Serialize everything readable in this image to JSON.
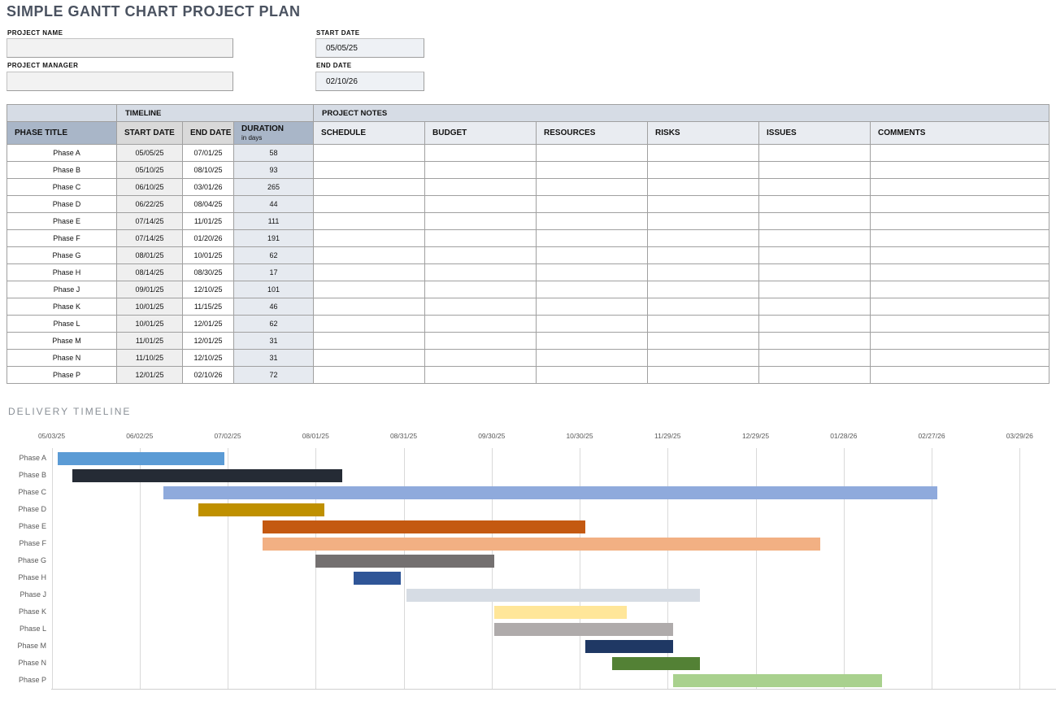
{
  "window": {
    "title": "SIMPLE GANTT CHART PROJECT PLAN"
  },
  "form": {
    "project_name_label": "PROJECT NAME",
    "project_name_value": "",
    "project_manager_label": "PROJECT MANAGER",
    "project_manager_value": "",
    "start_date_label": "START DATE",
    "start_date_value": "05/05/25",
    "end_date_label": "END DATE",
    "end_date_value": "02/10/26"
  },
  "table": {
    "group_timeline": "TIMELINE",
    "group_notes": "PROJECT NOTES",
    "col_phase": "PHASE TITLE",
    "col_start": "START DATE",
    "col_end": "END DATE",
    "col_duration": "DURATION",
    "col_duration_sub": "in days",
    "note_columns": [
      "SCHEDULE",
      "BUDGET",
      "RESOURCES",
      "RISKS",
      "ISSUES",
      "COMMENTS"
    ]
  },
  "gantt": {
    "section_title": "DELIVERY TIMELINE",
    "axis_labels": [
      "05/03/25",
      "06/02/25",
      "07/02/25",
      "08/01/25",
      "08/31/25",
      "09/30/25",
      "10/30/25",
      "11/29/25",
      "12/29/25",
      "01/28/26",
      "02/27/26",
      "03/29/26"
    ],
    "axis_start_date": "05/03/25",
    "axis_interval_days": 30
  },
  "chart_data": {
    "type": "gantt",
    "title": "DELIVERY TIMELINE",
    "x_tick_labels": [
      "05/03/25",
      "06/02/25",
      "07/02/25",
      "08/01/25",
      "08/31/25",
      "09/30/25",
      "10/30/25",
      "11/29/25",
      "12/29/25",
      "01/28/26",
      "02/27/26",
      "03/29/26"
    ],
    "tasks": [
      {
        "name": "Phase A",
        "start": "05/05/25",
        "end": "07/01/25",
        "duration": "58",
        "color": "#5b9bd5"
      },
      {
        "name": "Phase B",
        "start": "05/10/25",
        "end": "08/10/25",
        "duration": "93",
        "color": "#252b35"
      },
      {
        "name": "Phase C",
        "start": "06/10/25",
        "end": "03/01/26",
        "duration": "265",
        "color": "#8faadc"
      },
      {
        "name": "Phase D",
        "start": "06/22/25",
        "end": "08/04/25",
        "duration": "44",
        "color": "#bf9000"
      },
      {
        "name": "Phase E",
        "start": "07/14/25",
        "end": "11/01/25",
        "duration": "111",
        "color": "#c45911"
      },
      {
        "name": "Phase F",
        "start": "07/14/25",
        "end": "01/20/26",
        "duration": "191",
        "color": "#f2b083"
      },
      {
        "name": "Phase G",
        "start": "08/01/25",
        "end": "10/01/25",
        "duration": "62",
        "color": "#747070"
      },
      {
        "name": "Phase H",
        "start": "08/14/25",
        "end": "08/30/25",
        "duration": "17",
        "color": "#2f5597"
      },
      {
        "name": "Phase J",
        "start": "09/01/25",
        "end": "12/10/25",
        "duration": "101",
        "color": "#d6dce4"
      },
      {
        "name": "Phase K",
        "start": "10/01/25",
        "end": "11/15/25",
        "duration": "46",
        "color": "#ffe699"
      },
      {
        "name": "Phase L",
        "start": "10/01/25",
        "end": "12/01/25",
        "duration": "62",
        "color": "#afabab"
      },
      {
        "name": "Phase M",
        "start": "11/01/25",
        "end": "12/01/25",
        "duration": "31",
        "color": "#1f3864"
      },
      {
        "name": "Phase N",
        "start": "11/10/25",
        "end": "12/10/25",
        "duration": "31",
        "color": "#538135"
      },
      {
        "name": "Phase P",
        "start": "12/01/25",
        "end": "02/10/26",
        "duration": "72",
        "color": "#a9d18e"
      }
    ]
  }
}
